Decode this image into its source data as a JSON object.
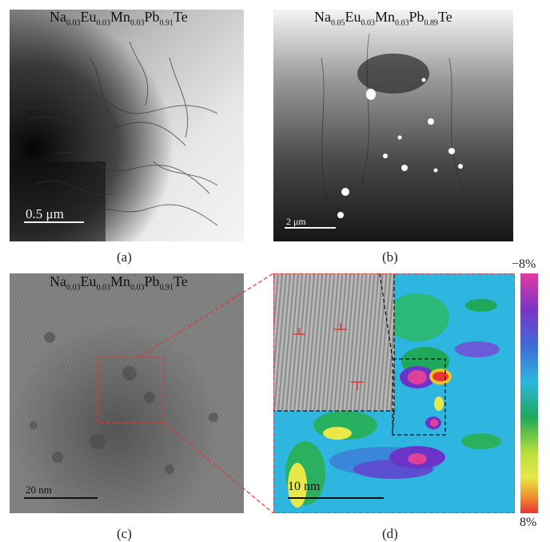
{
  "panels": {
    "a": {
      "caption": "(a)",
      "formula": [
        "Na",
        "0.03",
        "Eu",
        "0.03",
        "Mn",
        "0.03",
        "Pb",
        "0.91",
        "Te"
      ],
      "scale_label": "0.5 μm"
    },
    "b": {
      "caption": "(b)",
      "formula": [
        "Na",
        "0.05",
        "Eu",
        "0.03",
        "Mn",
        "0.03",
        "Pb",
        "0.89",
        "Te"
      ],
      "scale_label": "2 μm"
    },
    "c": {
      "caption": "(c)",
      "formula": [
        "Na",
        "0.03",
        "Eu",
        "0.03",
        "Mn",
        "0.03",
        "Pb",
        "0.91",
        "Te"
      ],
      "scale_label": "20 nm"
    },
    "d": {
      "caption": "(d)",
      "scale_label": "10 nm",
      "colorbar_top": "−8%",
      "colorbar_bottom": "8%"
    }
  },
  "colors": {
    "zoom_outline": "#e8352f",
    "inset_outline": "#111111",
    "dislocation_marker": "#e8352f"
  },
  "icons": [
    "dislocation-symbol"
  ]
}
